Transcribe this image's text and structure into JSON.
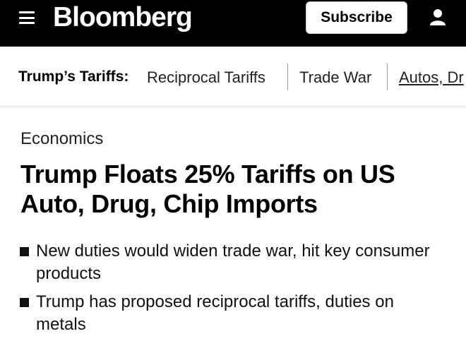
{
  "header": {
    "logo": "Bloomberg",
    "subscribe": "Subscribe"
  },
  "nav": {
    "label": "Trump’s Tariffs:",
    "links": [
      "Reciprocal Tariffs",
      "Trade War",
      "Autos, Dr"
    ]
  },
  "article": {
    "category": "Economics",
    "headline": "Trump Floats 25% Tariffs on US Auto, Drug, Chip Imports",
    "bullets": [
      "New duties would widen trade war, hit key consumer products",
      "Trump has proposed reciprocal tariffs, duties on metals"
    ]
  }
}
